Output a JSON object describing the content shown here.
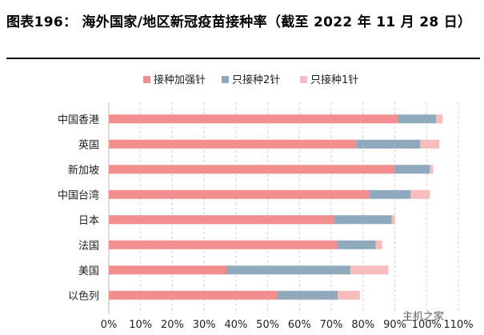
{
  "chart_data": {
    "type": "bar",
    "orientation": "horizontal",
    "stacked": true,
    "title": "图表196：  海外国家/地区新冠疫苗接种率（截至 2022 年 11 月 28 日）",
    "categories": [
      "中国香港",
      "英国",
      "新加坡",
      "中国台湾",
      "日本",
      "法国",
      "美国",
      "以色列"
    ],
    "series": [
      {
        "name": "接种加强针",
        "color": "#f28e8e",
        "values": [
          91,
          78,
          90,
          82,
          71,
          72,
          37,
          53
        ]
      },
      {
        "name": "只接种2针",
        "color": "#8fa9bd",
        "values": [
          12,
          20,
          11,
          13,
          18,
          12,
          39,
          19
        ]
      },
      {
        "name": "只接种1针",
        "color": "#f9bcbc",
        "values": [
          2,
          6,
          1,
          6,
          1,
          2,
          12,
          7
        ]
      }
    ],
    "xlim": [
      0,
      110
    ],
    "xticks": [
      "0%",
      "10%",
      "20%",
      "30%",
      "40%",
      "50%",
      "60%",
      "70%",
      "80%",
      "90%",
      "100%",
      "110%"
    ],
    "grid": "vertical-dashed",
    "legend_position": "top"
  },
  "watermark": "主机之家"
}
